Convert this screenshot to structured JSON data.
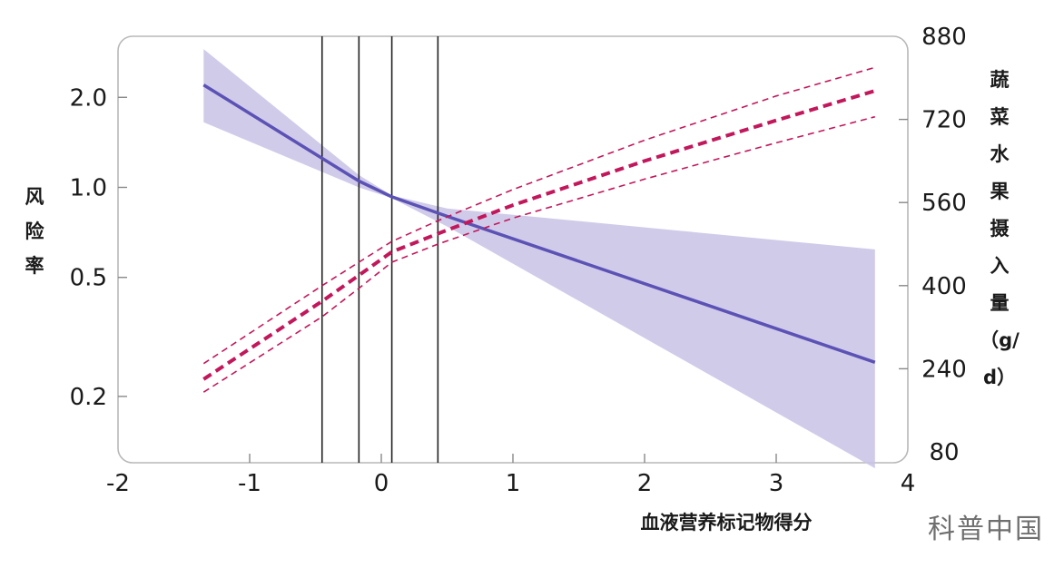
{
  "chart_data": {
    "type": "line",
    "xlabel": "血液营养标记物得分",
    "ylabel_left": "风险率",
    "ylabel_right": "蔬菜水果摄入量（g/d）",
    "x_range": [
      -2,
      4
    ],
    "x_ticks": [
      "-2",
      "-1",
      "0",
      "1",
      "2",
      "3",
      "4"
    ],
    "y_left_scale": "log",
    "y_left_range": [
      0.12,
      3.2
    ],
    "y_left_ticks": [
      {
        "value": 2.0,
        "label": "2.0"
      },
      {
        "value": 1.0,
        "label": "1.0"
      },
      {
        "value": 0.5,
        "label": "0.5"
      },
      {
        "value": 0.2,
        "label": "0.2"
      }
    ],
    "y_right_range": [
      80,
      880
    ],
    "y_right_ticks": [
      "880",
      "720",
      "560",
      "400",
      "240",
      "80"
    ],
    "vertical_lines_x": [
      -0.45,
      -0.17,
      0.08,
      0.43
    ],
    "series": [
      {
        "axis": "left",
        "style": "solid",
        "color": "#5b52b5",
        "band_color": "#c9c2e6",
        "x": [
          -1.35,
          -0.17,
          0.08,
          0.5,
          3.75
        ],
        "y": [
          2.2,
          1.05,
          0.93,
          0.8,
          0.26
        ],
        "ci_low": [
          1.65,
          1.0,
          0.92,
          0.74,
          0.115
        ],
        "ci_high": [
          2.9,
          1.1,
          0.94,
          0.85,
          0.62
        ]
      },
      {
        "axis": "right",
        "style": "dashed",
        "color": "#c2185b",
        "x": [
          -1.35,
          -0.45,
          -0.17,
          0.08,
          0.43,
          1.0,
          2.0,
          3.0,
          3.75
        ],
        "y": [
          220,
          370,
          420,
          465,
          500,
          555,
          640,
          718,
          775
        ],
        "ci_low": [
          195,
          340,
          395,
          445,
          480,
          530,
          605,
          675,
          725
        ],
        "ci_high": [
          250,
          400,
          445,
          485,
          525,
          585,
          680,
          765,
          820
        ]
      }
    ]
  },
  "watermark": "科普中国"
}
